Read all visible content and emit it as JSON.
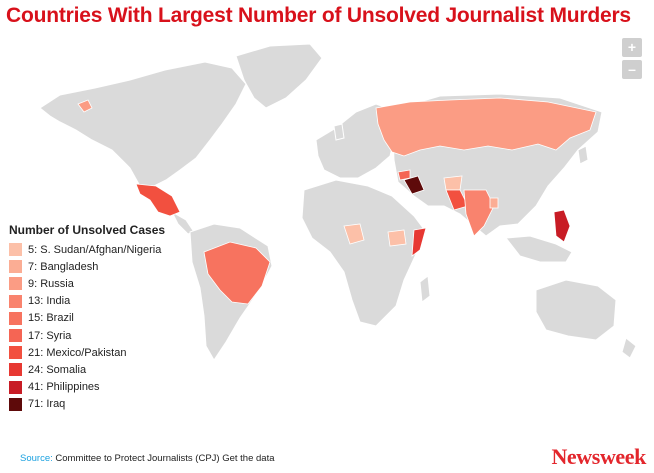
{
  "title": "Countries With Largest Number of Unsolved Journalist Murders",
  "zoom": {
    "in_label": "+",
    "out_label": "–"
  },
  "legend": {
    "title": "Number of Unsolved Cases",
    "items": [
      {
        "label": "5: S. Sudan/Afghan/Nigeria",
        "color": "#fcc0a8"
      },
      {
        "label": "7: Bangladesh",
        "color": "#fbad94"
      },
      {
        "label": "9: Russia",
        "color": "#fb9c84"
      },
      {
        "label": "13: India",
        "color": "#f9836e"
      },
      {
        "label": "15: Brazil",
        "color": "#f7735f"
      },
      {
        "label": "17: Syria",
        "color": "#f56554"
      },
      {
        "label": "21: Mexico/Pakistan",
        "color": "#f2503f"
      },
      {
        "label": "24: Somalia",
        "color": "#e73832"
      },
      {
        "label": "41: Philippines",
        "color": "#c81c25"
      },
      {
        "label": "71: Iraq",
        "color": "#5e0a0a"
      }
    ]
  },
  "map_colors": {
    "land": "#dadada",
    "water": "#ffffff",
    "border": "#ffffff"
  },
  "footer": {
    "source_label": "Source:",
    "source_text": "Committee to Protect Journalists (CPJ)",
    "link_label": "Get the data"
  },
  "logo": "Newsweek"
}
